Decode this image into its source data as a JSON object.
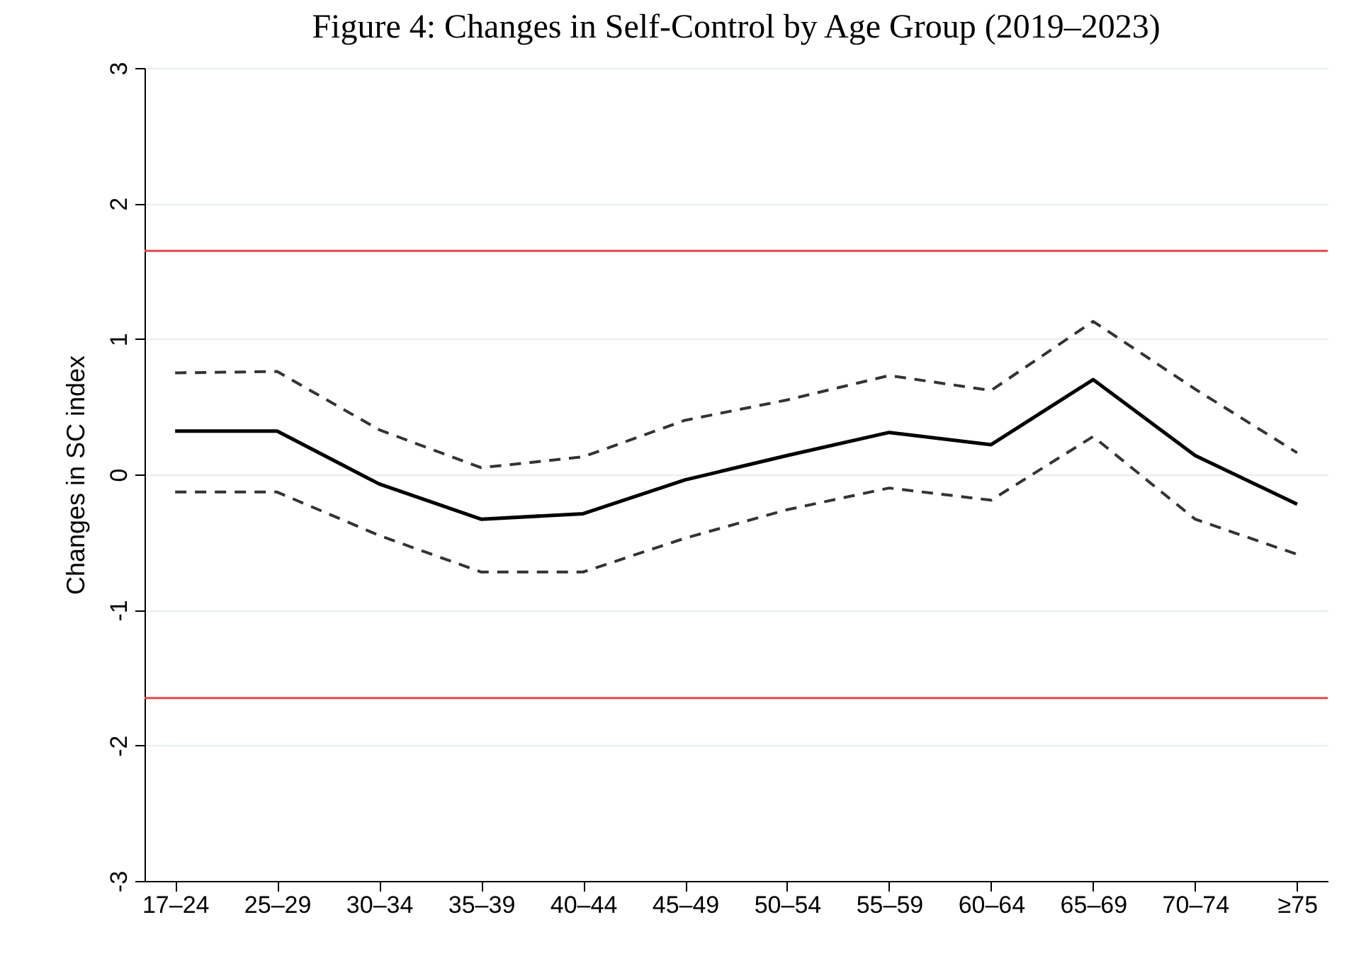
{
  "chart_data": {
    "type": "line",
    "title": "Figure 4: Changes in Self-Control by Age Group (2019–2023)",
    "ylabel": "Changes in SC index",
    "categories": [
      "17–24",
      "25–29",
      "30–34",
      "35–39",
      "40–44",
      "45–49",
      "50–54",
      "55–59",
      "60–64",
      "65–69",
      "70–74",
      "≥75"
    ],
    "series": [
      {
        "color": "#000000",
        "line_style": "solid",
        "values": [
          0.32,
          0.32,
          -0.07,
          -0.33,
          -0.29,
          -0.04,
          0.14,
          0.31,
          0.22,
          0.7,
          0.14,
          -0.22
        ]
      },
      {
        "color": "#333333",
        "line_style": "dashed",
        "values": [
          0.75,
          0.76,
          0.33,
          0.05,
          0.13,
          0.4,
          0.55,
          0.73,
          0.62,
          1.13,
          0.63,
          0.16
        ]
      },
      {
        "color": "#333333",
        "line_style": "dashed",
        "values": [
          -0.13,
          -0.13,
          -0.45,
          -0.72,
          -0.72,
          -0.47,
          -0.26,
          -0.1,
          -0.19,
          0.28,
          -0.33,
          -0.59
        ]
      }
    ],
    "ylim": [
      -3,
      3
    ],
    "yticks": [
      -3,
      -2,
      -1,
      0,
      1,
      2,
      3
    ],
    "ref_lines": [
      {
        "axis": "y",
        "value": 1.65,
        "color": "#e8474c"
      },
      {
        "axis": "y",
        "value": -1.65,
        "color": "#e8474c"
      }
    ],
    "grid": "y",
    "marker": "none"
  }
}
